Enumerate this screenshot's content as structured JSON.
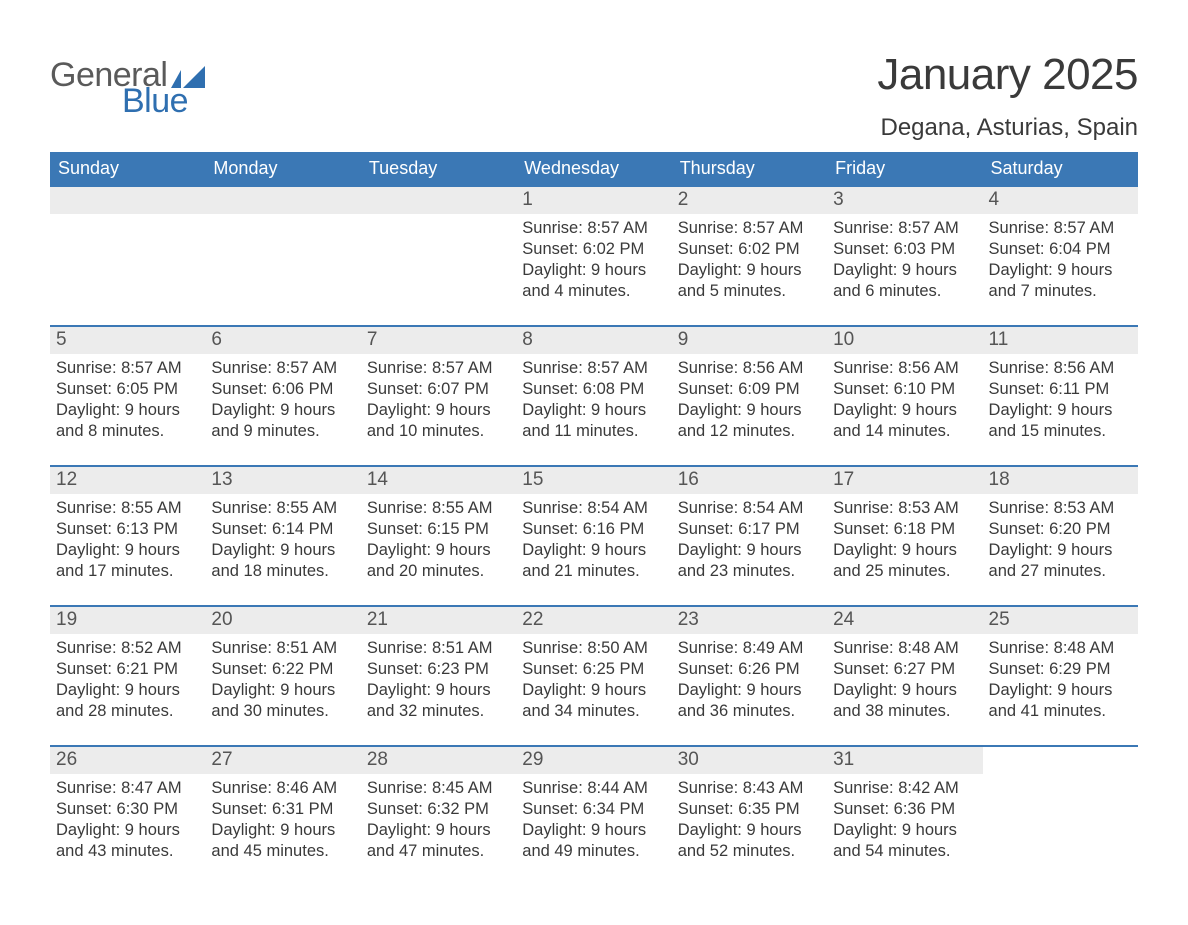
{
  "logo": {
    "text_general": "General",
    "text_blue": "Blue",
    "flag_color": "#2f6fb0"
  },
  "title": {
    "month": "January 2025",
    "location": "Degana, Asturias, Spain"
  },
  "colors": {
    "header_bg": "#3b78b5",
    "header_text": "#ffffff",
    "daynum_bg": "#ececec",
    "daynum_text": "#555555",
    "body_text": "#3a3a3a",
    "week_border": "#3b78b5",
    "page_bg": "#ffffff"
  },
  "weekdays": [
    "Sunday",
    "Monday",
    "Tuesday",
    "Wednesday",
    "Thursday",
    "Friday",
    "Saturday"
  ],
  "labels": {
    "sunrise": "Sunrise:",
    "sunset": "Sunset:",
    "daylight": "Daylight:"
  },
  "weeks": [
    [
      {
        "empty": true
      },
      {
        "empty": true
      },
      {
        "empty": true
      },
      {
        "day": "1",
        "sunrise": "8:57 AM",
        "sunset": "6:02 PM",
        "daylight": "9 hours and 4 minutes."
      },
      {
        "day": "2",
        "sunrise": "8:57 AM",
        "sunset": "6:02 PM",
        "daylight": "9 hours and 5 minutes."
      },
      {
        "day": "3",
        "sunrise": "8:57 AM",
        "sunset": "6:03 PM",
        "daylight": "9 hours and 6 minutes."
      },
      {
        "day": "4",
        "sunrise": "8:57 AM",
        "sunset": "6:04 PM",
        "daylight": "9 hours and 7 minutes."
      }
    ],
    [
      {
        "day": "5",
        "sunrise": "8:57 AM",
        "sunset": "6:05 PM",
        "daylight": "9 hours and 8 minutes."
      },
      {
        "day": "6",
        "sunrise": "8:57 AM",
        "sunset": "6:06 PM",
        "daylight": "9 hours and 9 minutes."
      },
      {
        "day": "7",
        "sunrise": "8:57 AM",
        "sunset": "6:07 PM",
        "daylight": "9 hours and 10 minutes."
      },
      {
        "day": "8",
        "sunrise": "8:57 AM",
        "sunset": "6:08 PM",
        "daylight": "9 hours and 11 minutes."
      },
      {
        "day": "9",
        "sunrise": "8:56 AM",
        "sunset": "6:09 PM",
        "daylight": "9 hours and 12 minutes."
      },
      {
        "day": "10",
        "sunrise": "8:56 AM",
        "sunset": "6:10 PM",
        "daylight": "9 hours and 14 minutes."
      },
      {
        "day": "11",
        "sunrise": "8:56 AM",
        "sunset": "6:11 PM",
        "daylight": "9 hours and 15 minutes."
      }
    ],
    [
      {
        "day": "12",
        "sunrise": "8:55 AM",
        "sunset": "6:13 PM",
        "daylight": "9 hours and 17 minutes."
      },
      {
        "day": "13",
        "sunrise": "8:55 AM",
        "sunset": "6:14 PM",
        "daylight": "9 hours and 18 minutes."
      },
      {
        "day": "14",
        "sunrise": "8:55 AM",
        "sunset": "6:15 PM",
        "daylight": "9 hours and 20 minutes."
      },
      {
        "day": "15",
        "sunrise": "8:54 AM",
        "sunset": "6:16 PM",
        "daylight": "9 hours and 21 minutes."
      },
      {
        "day": "16",
        "sunrise": "8:54 AM",
        "sunset": "6:17 PM",
        "daylight": "9 hours and 23 minutes."
      },
      {
        "day": "17",
        "sunrise": "8:53 AM",
        "sunset": "6:18 PM",
        "daylight": "9 hours and 25 minutes."
      },
      {
        "day": "18",
        "sunrise": "8:53 AM",
        "sunset": "6:20 PM",
        "daylight": "9 hours and 27 minutes."
      }
    ],
    [
      {
        "day": "19",
        "sunrise": "8:52 AM",
        "sunset": "6:21 PM",
        "daylight": "9 hours and 28 minutes."
      },
      {
        "day": "20",
        "sunrise": "8:51 AM",
        "sunset": "6:22 PM",
        "daylight": "9 hours and 30 minutes."
      },
      {
        "day": "21",
        "sunrise": "8:51 AM",
        "sunset": "6:23 PM",
        "daylight": "9 hours and 32 minutes."
      },
      {
        "day": "22",
        "sunrise": "8:50 AM",
        "sunset": "6:25 PM",
        "daylight": "9 hours and 34 minutes."
      },
      {
        "day": "23",
        "sunrise": "8:49 AM",
        "sunset": "6:26 PM",
        "daylight": "9 hours and 36 minutes."
      },
      {
        "day": "24",
        "sunrise": "8:48 AM",
        "sunset": "6:27 PM",
        "daylight": "9 hours and 38 minutes."
      },
      {
        "day": "25",
        "sunrise": "8:48 AM",
        "sunset": "6:29 PM",
        "daylight": "9 hours and 41 minutes."
      }
    ],
    [
      {
        "day": "26",
        "sunrise": "8:47 AM",
        "sunset": "6:30 PM",
        "daylight": "9 hours and 43 minutes."
      },
      {
        "day": "27",
        "sunrise": "8:46 AM",
        "sunset": "6:31 PM",
        "daylight": "9 hours and 45 minutes."
      },
      {
        "day": "28",
        "sunrise": "8:45 AM",
        "sunset": "6:32 PM",
        "daylight": "9 hours and 47 minutes."
      },
      {
        "day": "29",
        "sunrise": "8:44 AM",
        "sunset": "6:34 PM",
        "daylight": "9 hours and 49 minutes."
      },
      {
        "day": "30",
        "sunrise": "8:43 AM",
        "sunset": "6:35 PM",
        "daylight": "9 hours and 52 minutes."
      },
      {
        "day": "31",
        "sunrise": "8:42 AM",
        "sunset": "6:36 PM",
        "daylight": "9 hours and 54 minutes."
      },
      {
        "blank": true
      }
    ]
  ]
}
